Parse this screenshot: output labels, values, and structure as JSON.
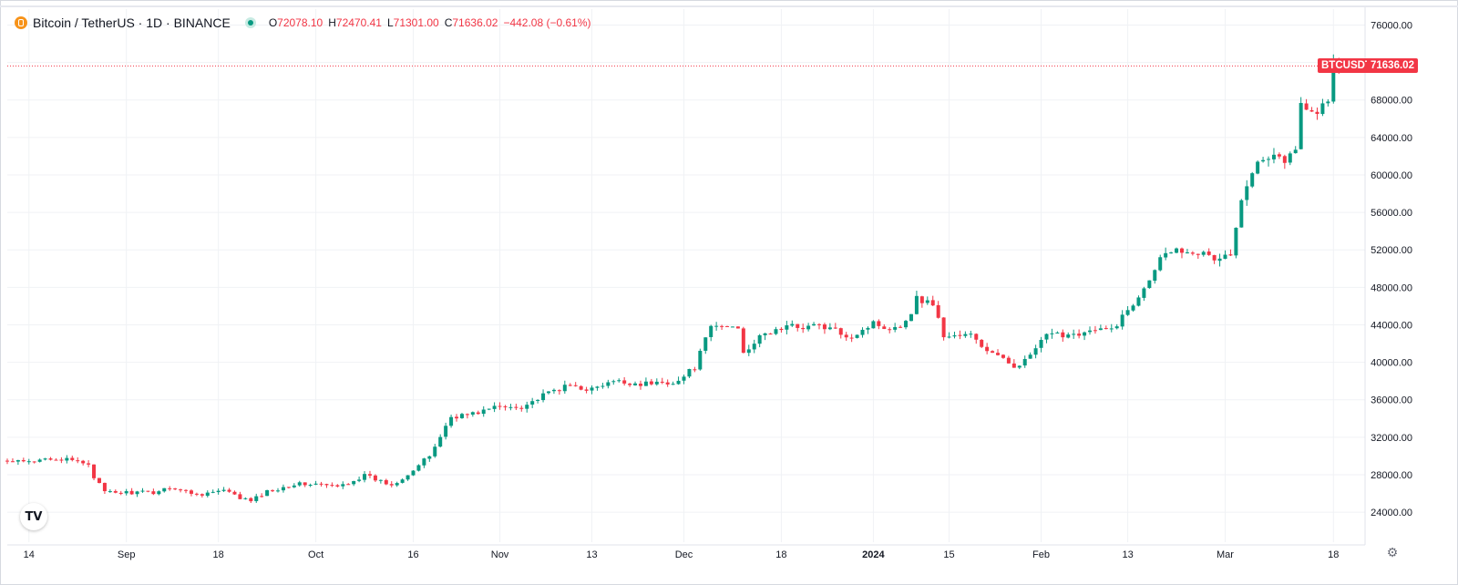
{
  "legend": {
    "symbol": "Bitcoin / TetherUS · 1D · BINANCE",
    "open_label": "O",
    "open": "72078.10",
    "high_label": "H",
    "high": "72470.41",
    "low_label": "L",
    "low": "71301.00",
    "close_label": "C",
    "close": "71636.02",
    "change": "−442.08 (−0.61%)",
    "icon": "bitcoin-coin-icon",
    "status_icon": "market-open-dot-icon"
  },
  "price_tag": {
    "ticker": "BTCUSDT",
    "price": "71636.02"
  },
  "colors": {
    "up": "#089981",
    "down": "#f23645",
    "grid": "#f0f2f5",
    "text": "#131722"
  },
  "logo_text": "TV",
  "settings_icon": "gear-icon",
  "chart_data": {
    "type": "candlestick",
    "timeframe": "1D",
    "y_ticks": [
      "76000.00",
      "72000.00",
      "68000.00",
      "64000.00",
      "60000.00",
      "56000.00",
      "52000.00",
      "48000.00",
      "44000.00",
      "40000.00",
      "36000.00",
      "32000.00",
      "28000.00",
      "24000.00"
    ],
    "ylim": [
      20800,
      77700
    ],
    "x_ticks": [
      "14",
      "Sep",
      "18",
      "Oct",
      "16",
      "Nov",
      "13",
      "Dec",
      "18",
      "2024",
      "15",
      "Feb",
      "13",
      "Mar",
      "18"
    ],
    "x_tick_days": [
      4,
      22,
      39,
      57,
      75,
      91,
      108,
      125,
      143,
      160,
      174,
      191,
      207,
      225,
      245
    ],
    "day_count": 247,
    "start_date": "2023-08-10",
    "last_price": 71636.02,
    "anchors": [
      [
        0,
        29400
      ],
      [
        5,
        29300
      ],
      [
        7,
        29900
      ],
      [
        15,
        29200
      ],
      [
        16,
        27800
      ],
      [
        18,
        26100
      ],
      [
        27,
        26100
      ],
      [
        30,
        26700
      ],
      [
        35,
        25900
      ],
      [
        40,
        26300
      ],
      [
        43,
        25500
      ],
      [
        45,
        25200
      ],
      [
        48,
        26200
      ],
      [
        53,
        27000
      ],
      [
        57,
        27000
      ],
      [
        61,
        26700
      ],
      [
        66,
        27900
      ],
      [
        71,
        26900
      ],
      [
        75,
        28500
      ],
      [
        78,
        30000
      ],
      [
        82,
        34200
      ],
      [
        86,
        34500
      ],
      [
        90,
        35200
      ],
      [
        95,
        35300
      ],
      [
        98,
        36100
      ],
      [
        101,
        37000
      ],
      [
        104,
        37500
      ],
      [
        108,
        37100
      ],
      [
        112,
        37900
      ],
      [
        118,
        37700
      ],
      [
        124,
        38000
      ],
      [
        127,
        39500
      ],
      [
        130,
        43800
      ],
      [
        135,
        43800
      ],
      [
        136,
        41200
      ],
      [
        140,
        43000
      ],
      [
        144,
        43800
      ],
      [
        150,
        43900
      ],
      [
        156,
        42800
      ],
      [
        160,
        44200
      ],
      [
        163,
        43700
      ],
      [
        166,
        44200
      ],
      [
        168,
        46800
      ],
      [
        171,
        46300
      ],
      [
        173,
        42800
      ],
      [
        178,
        42900
      ],
      [
        180,
        41700
      ],
      [
        184,
        40200
      ],
      [
        186,
        39700
      ],
      [
        188,
        40100
      ],
      [
        192,
        42800
      ],
      [
        197,
        43100
      ],
      [
        204,
        43500
      ],
      [
        208,
        46200
      ],
      [
        212,
        50100
      ],
      [
        214,
        52000
      ],
      [
        219,
        52000
      ],
      [
        223,
        51000
      ],
      [
        226,
        51500
      ],
      [
        228,
        57000
      ],
      [
        231,
        61900
      ],
      [
        234,
        62300
      ],
      [
        236,
        61600
      ],
      [
        238,
        62500
      ],
      [
        239,
        67800
      ],
      [
        242,
        66600
      ],
      [
        244,
        68200
      ],
      [
        245,
        72400
      ],
      [
        246,
        71636
      ]
    ]
  }
}
